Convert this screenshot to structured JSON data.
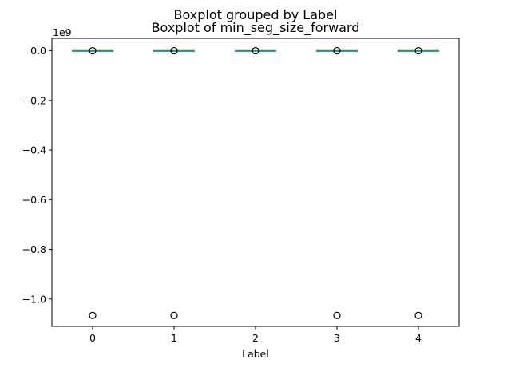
{
  "chart_data": {
    "type": "boxplot",
    "suptitle": "Boxplot grouped by Label",
    "title": "Boxplot of min_seg_size_forward",
    "xlabel": "Label",
    "ylabel": "",
    "y_offset_label": "1e9",
    "categories": [
      "0",
      "1",
      "2",
      "3",
      "4"
    ],
    "y_ticks": [
      0.0,
      -0.2,
      -0.4,
      -0.6,
      -0.8,
      -1.0
    ],
    "y_tick_labels": [
      "0.0",
      "−0.2",
      "−0.4",
      "−0.6",
      "−0.8",
      "−1.0"
    ],
    "ylim": [
      -1.11,
      0.05
    ],
    "xlim": [
      -0.5,
      4.5
    ],
    "scale_note": "y values in units of 1e9",
    "boxes": [
      {
        "label": "0",
        "q1": 0.0,
        "median": 0.0,
        "q3": 0.0,
        "whisker_low": 0.0,
        "whisker_high": 0.0,
        "outliers": [
          0.0,
          -1.066
        ]
      },
      {
        "label": "1",
        "q1": 0.0,
        "median": 0.0,
        "q3": 0.0,
        "whisker_low": 0.0,
        "whisker_high": 0.0,
        "outliers": [
          0.0,
          -1.066
        ]
      },
      {
        "label": "2",
        "q1": 0.0,
        "median": 0.0,
        "q3": 0.0,
        "whisker_low": 0.0,
        "whisker_high": 0.0,
        "outliers": [
          0.0
        ]
      },
      {
        "label": "3",
        "q1": 0.0,
        "median": 0.0,
        "q3": 0.0,
        "whisker_low": 0.0,
        "whisker_high": 0.0,
        "outliers": [
          0.0,
          -1.066
        ]
      },
      {
        "label": "4",
        "q1": 0.0,
        "median": 0.0,
        "q3": 0.0,
        "whisker_low": 0.0,
        "whisker_high": 0.0,
        "outliers": [
          0.0,
          -1.066
        ]
      }
    ],
    "colors": {
      "box": "#1f77b4",
      "median": "#2ca02c",
      "whisker": "#1f77b4",
      "flier": "#000000"
    },
    "grid": false,
    "legend": "none"
  }
}
